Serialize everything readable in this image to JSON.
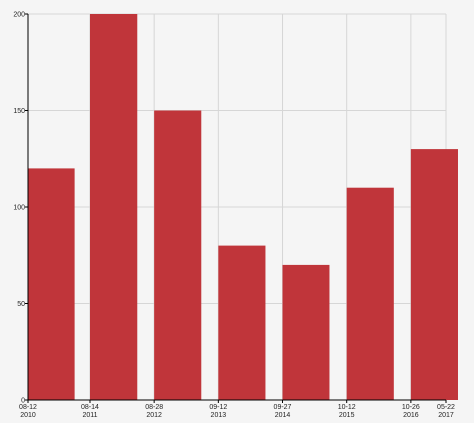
{
  "chart_data": {
    "type": "bar",
    "title": "",
    "xlabel": "",
    "ylabel": "",
    "bar_color": "#c0353a",
    "background": "#f5f5f5",
    "grid": true,
    "ylim": [
      0,
      200
    ],
    "yticks": [
      0,
      50,
      100,
      150,
      200
    ],
    "xlim": [
      "2010-08-12",
      "2017-05-22"
    ],
    "xticks": [
      {
        "date": "2010-08-12",
        "line1": "08-12",
        "line2": "2010"
      },
      {
        "date": "2011-08-14",
        "line1": "08-14",
        "line2": "2011"
      },
      {
        "date": "2012-08-28",
        "line1": "08-28",
        "line2": "2012"
      },
      {
        "date": "2013-09-12",
        "line1": "09-12",
        "line2": "2013"
      },
      {
        "date": "2014-09-27",
        "line1": "09-27",
        "line2": "2014"
      },
      {
        "date": "2015-10-12",
        "line1": "10-12",
        "line2": "2015"
      },
      {
        "date": "2016-10-26",
        "line1": "10-26",
        "line2": "2016"
      },
      {
        "date": "2017-05-22",
        "line1": "05-22",
        "line2": "2017"
      }
    ],
    "bars": [
      {
        "start": "2010-08-12",
        "end": "2011-05-15",
        "value": 120
      },
      {
        "start": "2011-08-14",
        "end": "2012-05-20",
        "value": 200
      },
      {
        "start": "2012-08-28",
        "end": "2013-06-03",
        "value": 150
      },
      {
        "start": "2013-09-12",
        "end": "2014-06-18",
        "value": 80
      },
      {
        "start": "2014-09-27",
        "end": "2015-07-02",
        "value": 70
      },
      {
        "start": "2015-10-12",
        "end": "2016-07-17",
        "value": 110
      },
      {
        "start": "2016-10-26",
        "end": "2017-08-01",
        "value": 130
      }
    ]
  }
}
